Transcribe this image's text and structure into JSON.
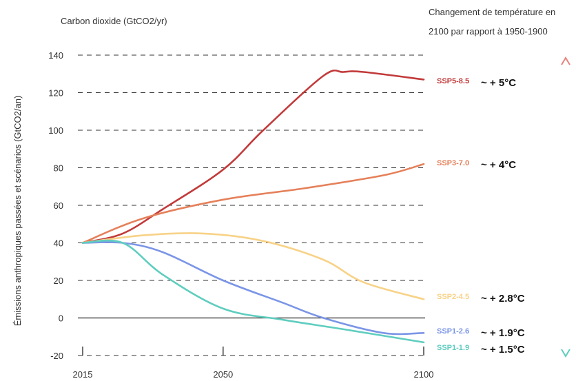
{
  "chart_data": {
    "type": "line",
    "title": "Carbon dioxide (GtCO2/yr)",
    "right_title_line1": "Changement de température en",
    "right_title_line2": "2100 par rapport à 1950-1900",
    "ylabel_line1": "Émissions anthropiques passées et scénarios (GtCO2/an)",
    "xlabel": "",
    "ylim": [
      -20,
      140
    ],
    "xlim": [
      2015,
      2100
    ],
    "y_ticks": [
      -20,
      0,
      20,
      40,
      60,
      80,
      100,
      120,
      140
    ],
    "x_ticks": [
      2015,
      2050,
      2100
    ],
    "grid": "horizontal-dashed",
    "series": [
      {
        "name": "SSP5-8.5",
        "temperature": "~ + 5°C",
        "color": "#c23a3a",
        "points": [
          [
            2015,
            40
          ],
          [
            2025,
            45
          ],
          [
            2035,
            58
          ],
          [
            2050,
            79
          ],
          [
            2060,
            100
          ],
          [
            2075,
            129
          ],
          [
            2080,
            131
          ],
          [
            2085,
            131
          ],
          [
            2100,
            127
          ]
        ]
      },
      {
        "name": "SSP3-7.0",
        "temperature": "~ + 4°C",
        "color": "#e5805a",
        "points": [
          [
            2015,
            40
          ],
          [
            2030,
            53
          ],
          [
            2050,
            63
          ],
          [
            2070,
            69
          ],
          [
            2090,
            76
          ],
          [
            2100,
            82
          ]
        ]
      },
      {
        "name": "SSP2-4.5",
        "temperature": "~ + 2.8°C",
        "color": "#f8d287",
        "points": [
          [
            2015,
            40
          ],
          [
            2030,
            44
          ],
          [
            2045,
            45
          ],
          [
            2060,
            41
          ],
          [
            2075,
            31
          ],
          [
            2085,
            19
          ],
          [
            2100,
            10
          ]
        ]
      },
      {
        "name": "SSP1-2.6",
        "temperature": "~ + 1.9°C",
        "color": "#7b95e6",
        "points": [
          [
            2015,
            40
          ],
          [
            2025,
            40
          ],
          [
            2035,
            35
          ],
          [
            2050,
            20
          ],
          [
            2065,
            8
          ],
          [
            2075,
            0
          ],
          [
            2090,
            -8
          ],
          [
            2100,
            -8
          ]
        ]
      },
      {
        "name": "SSP1-1.9",
        "temperature": "~ + 1.5°C",
        "color": "#5fcdbf",
        "points": [
          [
            2015,
            40
          ],
          [
            2025,
            40
          ],
          [
            2035,
            23
          ],
          [
            2050,
            5
          ],
          [
            2065,
            -1
          ],
          [
            2080,
            -6
          ],
          [
            2100,
            -13
          ]
        ]
      }
    ]
  }
}
